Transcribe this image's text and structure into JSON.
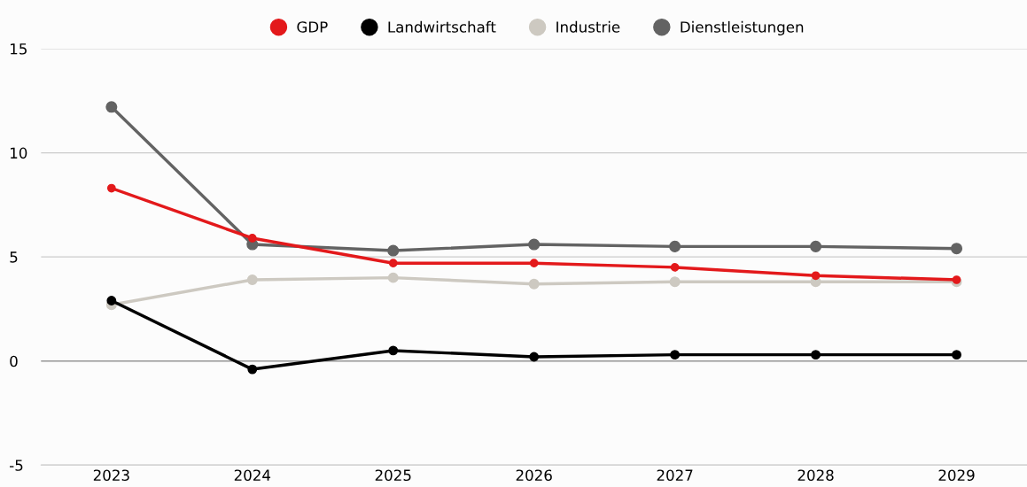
{
  "chart_data": {
    "type": "line",
    "categories": [
      "2023",
      "2024",
      "2025",
      "2026",
      "2027",
      "2028",
      "2029"
    ],
    "series": [
      {
        "name": "GDP",
        "color": "#e3191b",
        "values": [
          8.3,
          5.9,
          4.7,
          4.7,
          4.5,
          4.1,
          3.9
        ]
      },
      {
        "name": "Landwirtschaft",
        "color": "#000000",
        "values": [
          2.9,
          -0.4,
          0.5,
          0.2,
          0.3,
          0.3,
          0.3
        ]
      },
      {
        "name": "Industrie",
        "color": "#cdc9c1",
        "values": [
          2.7,
          3.9,
          4.0,
          3.7,
          3.8,
          3.8,
          3.8
        ]
      },
      {
        "name": "Dienstleistungen",
        "color": "#636363",
        "values": [
          12.2,
          5.6,
          5.3,
          5.6,
          5.5,
          5.5,
          5.4
        ]
      }
    ],
    "ylim": [
      -5,
      15
    ],
    "yticks": [
      -5,
      0,
      5,
      10,
      15
    ],
    "grid": "y",
    "legend": "top",
    "marker": "circle",
    "line_style": "solid"
  }
}
